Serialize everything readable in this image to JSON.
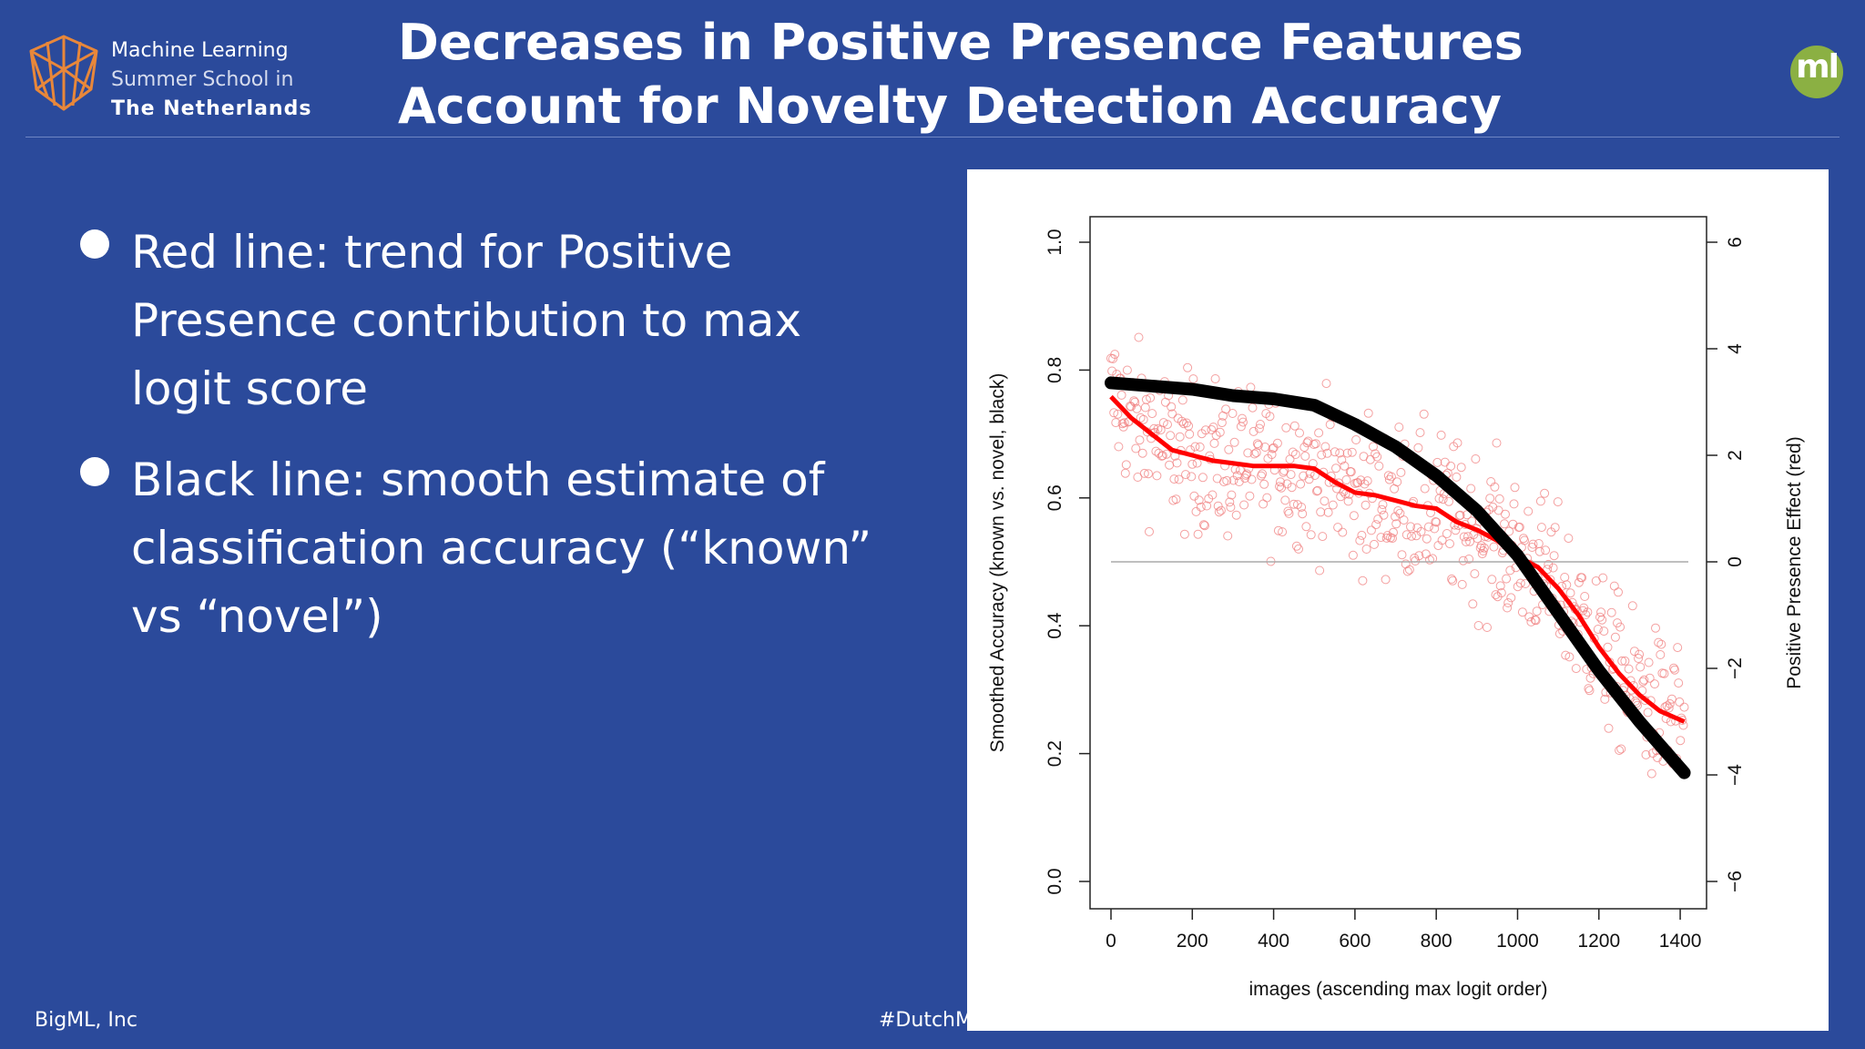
{
  "logo": {
    "line1": "Machine Learning",
    "line2": "Summer School in",
    "line3": "The Netherlands",
    "accent": "#e8873a"
  },
  "title": {
    "line1": "Decreases in Positive Presence Features",
    "line2": "Account for Novelty Detection Accuracy"
  },
  "badge": {
    "text": "ml",
    "color": "#8bb043"
  },
  "bullets": [
    {
      "text": "Red line: trend for Positive Presence contribution to max logit score"
    },
    {
      "text": "Black line: smooth estimate of classification accuracy (“known” vs “novel”)"
    }
  ],
  "footer": {
    "left": "BigML, Inc",
    "hashtag": "#DutchMLSchool"
  },
  "colors": {
    "background": "#2b4a9b",
    "red": "#ff0000",
    "black": "#000000",
    "points": "#f08080"
  },
  "chart_data": {
    "type": "scatter",
    "xlabel": "images (ascending max logit order)",
    "ylabel": "Smoothed Accuracy (known vs. novel, black)",
    "y2label": "Positive Presence Effect (red)",
    "xlim": [
      0,
      1420
    ],
    "ylim": [
      0,
      1
    ],
    "y2lim": [
      -6,
      6
    ],
    "x_ticks": [
      0,
      200,
      400,
      600,
      800,
      1000,
      1200,
      1400
    ],
    "y_ticks": [
      0,
      0.2,
      0.4,
      0.6,
      0.8,
      1
    ],
    "y_tick_labels": [
      "0.0",
      "0.2",
      "0.4",
      "0.6",
      "0.8",
      "1.0"
    ],
    "y2_ticks": [
      -6,
      -4,
      -2,
      0,
      2,
      4,
      6
    ],
    "y2_tick_labels": [
      "−6",
      "−4",
      "−2",
      "0",
      "2",
      "4",
      "6"
    ],
    "reference_line": {
      "axis": "y2",
      "value": 0
    },
    "series": [
      {
        "axis": "y",
        "style": "thick-line",
        "x": [
          0,
          100,
          200,
          300,
          400,
          500,
          600,
          700,
          800,
          900,
          1000,
          1100,
          1200,
          1300,
          1410
        ],
        "values": [
          0.78,
          0.775,
          0.77,
          0.76,
          0.755,
          0.745,
          0.715,
          0.68,
          0.635,
          0.58,
          0.51,
          0.42,
          0.33,
          0.25,
          0.17
        ]
      },
      {
        "axis": "y2",
        "style": "line",
        "x": [
          0,
          50,
          100,
          150,
          200,
          250,
          300,
          350,
          400,
          450,
          500,
          550,
          600,
          650,
          700,
          750,
          800,
          850,
          900,
          950,
          1000,
          1050,
          1100,
          1150,
          1200,
          1250,
          1300,
          1350,
          1410
        ],
        "values": [
          3.1,
          2.7,
          2.4,
          2.1,
          2.0,
          1.9,
          1.85,
          1.8,
          1.8,
          1.8,
          1.75,
          1.5,
          1.3,
          1.25,
          1.15,
          1.05,
          1.0,
          0.75,
          0.6,
          0.4,
          0.1,
          -0.1,
          -0.5,
          -1.0,
          -1.6,
          -2.1,
          -2.5,
          -2.8,
          -3.0
        ]
      }
    ],
    "scatter": {
      "axis": "y2",
      "count": 600,
      "spread_y2": 1.2,
      "note_source": "points scattered around red trend"
    }
  }
}
